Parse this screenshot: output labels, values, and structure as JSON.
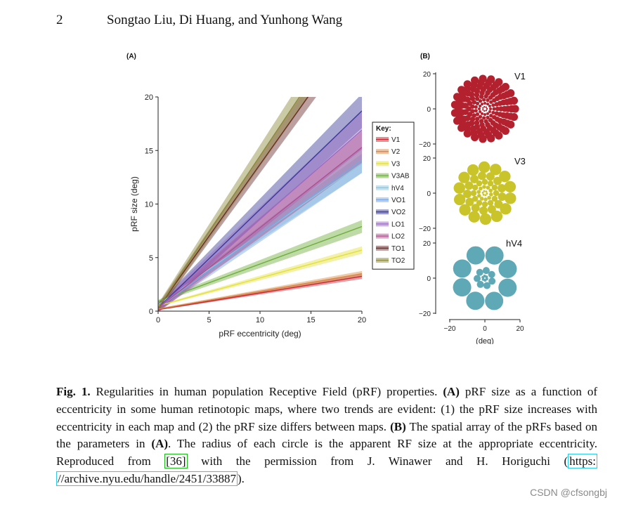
{
  "header": {
    "page_number": "2",
    "authors": "Songtao Liu, Di Huang, and Yunhong Wang"
  },
  "panel_a": {
    "label": "(A)",
    "chart_data": {
      "type": "line",
      "xlabel": "pRF eccentricity (deg)",
      "ylabel": "pRF size (deg)",
      "xlim": [
        0,
        20
      ],
      "ylim": [
        0,
        20
      ],
      "xticks": [
        "0",
        "5",
        "10",
        "15",
        "20"
      ],
      "yticks": [
        "0",
        "5",
        "10",
        "15",
        "20"
      ],
      "legend_title": "Key:",
      "legend_position": "right",
      "series": [
        {
          "name": "V1",
          "color": "#c42832",
          "intercept": 0.15,
          "slope": 0.155,
          "band": 0.25
        },
        {
          "name": "V2",
          "color": "#d98a45",
          "intercept": 0.2,
          "slope": 0.165,
          "band": 0.25
        },
        {
          "name": "V3",
          "color": "#e2e03c",
          "intercept": 0.5,
          "slope": 0.26,
          "band": 0.35
        },
        {
          "name": "V3AB",
          "color": "#6fae3b",
          "intercept": 0.9,
          "slope": 0.35,
          "band": 0.6
        },
        {
          "name": "hV4",
          "color": "#8cc6e0",
          "intercept": 0.6,
          "slope": 0.66,
          "band": 0.9
        },
        {
          "name": "VO1",
          "color": "#7aa6e0",
          "intercept": 0.3,
          "slope": 0.69,
          "band": 1.2
        },
        {
          "name": "VO2",
          "color": "#3a3a9a",
          "intercept": 0.3,
          "slope": 0.92,
          "band": 1.6
        },
        {
          "name": "LO1",
          "color": "#9a6ac4",
          "intercept": 0.3,
          "slope": 0.83,
          "band": 1.8
        },
        {
          "name": "LO2",
          "color": "#b0508e",
          "intercept": 0.3,
          "slope": 0.75,
          "band": 1.5
        },
        {
          "name": "TO1",
          "color": "#6b2a2a",
          "intercept": 0.3,
          "slope": 1.34,
          "band": 1.3
        },
        {
          "name": "TO2",
          "color": "#8b8a3a",
          "intercept": 0.3,
          "slope": 1.42,
          "band": 1.6
        }
      ]
    }
  },
  "panel_b": {
    "label": "(B)",
    "xlabel": "(deg)",
    "xticks": [
      "−20",
      "0",
      "20"
    ],
    "yticks": [
      "20",
      "0",
      "−20"
    ],
    "maps": [
      {
        "name": "V1",
        "color": "#b3212f"
      },
      {
        "name": "V3",
        "color": "#c9c42a"
      },
      {
        "name": "hV4",
        "color": "#5fa8b5"
      }
    ]
  },
  "caption": {
    "fig_label": "Fig. 1.",
    "part1": " Regularities in human population Receptive Field (pRF) properties. ",
    "marker_a": "(A)",
    "part2": " pRF size as a function of eccentricity in some human retinotopic maps, where two trends are evident: (1) the pRF size increases with eccentricity in each map and (2) the pRF size differs between maps. ",
    "marker_b": "(B)",
    "part3": " The spatial array of the pRFs based on the parameters in ",
    "marker_a2": "(A)",
    "part4": ". The radius of each circle is the apparent RF size at the appropriate eccentricity. Reproduced from ",
    "ref": "[36]",
    "part5": " with the permission from J. Winawer and H. Horiguchi (",
    "link1": "https:",
    "link2": "//archive.nyu.edu/handle/2451/33887",
    "part6": ")."
  },
  "watermark": "CSDN @cfsongbj"
}
